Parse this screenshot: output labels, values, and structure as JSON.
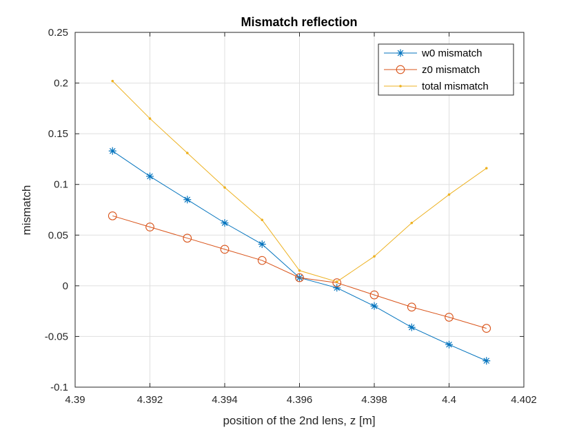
{
  "chart_data": {
    "type": "line",
    "title": "Mismatch reflection",
    "xlabel": "position of the 2nd lens, z [m]",
    "ylabel": "mismatch",
    "xlim": [
      4.39,
      4.402
    ],
    "ylim": [
      -0.1,
      0.25
    ],
    "xticks": [
      4.39,
      4.392,
      4.394,
      4.396,
      4.398,
      4.4,
      4.402
    ],
    "xtick_labels": [
      "4.39",
      "4.392",
      "4.394",
      "4.396",
      "4.398",
      "4.4",
      "4.402"
    ],
    "yticks": [
      -0.1,
      -0.05,
      0,
      0.05,
      0.1,
      0.15,
      0.2,
      0.25
    ],
    "ytick_labels": [
      "-0.1",
      "-0.05",
      "0",
      "0.05",
      "0.1",
      "0.15",
      "0.2",
      "0.25"
    ],
    "grid": true,
    "legend_position": "top-right",
    "x": [
      4.391,
      4.392,
      4.393,
      4.394,
      4.395,
      4.396,
      4.397,
      4.398,
      4.399,
      4.4,
      4.401
    ],
    "series": [
      {
        "name": "w0 mismatch",
        "color": "#0072BD",
        "marker": "asterisk",
        "values": [
          0.133,
          0.108,
          0.085,
          0.062,
          0.041,
          0.008,
          -0.002,
          -0.02,
          -0.041,
          -0.058,
          -0.074
        ]
      },
      {
        "name": "z0 mismatch",
        "color": "#D95319",
        "marker": "circle",
        "values": [
          0.069,
          0.058,
          0.047,
          0.036,
          0.025,
          0.008,
          0.003,
          -0.009,
          -0.021,
          -0.031,
          -0.042
        ]
      },
      {
        "name": "total mismatch",
        "color": "#EDB120",
        "marker": "dot",
        "values": [
          0.202,
          0.165,
          0.131,
          0.097,
          0.065,
          0.015,
          0.004,
          0.029,
          0.062,
          0.09,
          0.116
        ]
      }
    ]
  }
}
